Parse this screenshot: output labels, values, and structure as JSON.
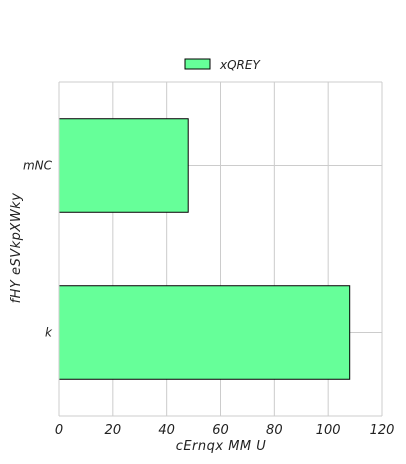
{
  "chart_data": {
    "type": "bar",
    "orientation": "horizontal",
    "categories": [
      "mNC",
      "k"
    ],
    "series": [
      {
        "name": "xQREY",
        "values": [
          48,
          108
        ],
        "color": "#66ff99"
      }
    ],
    "xlabel": "cErnqx MM U",
    "ylabel": "fHY eSVkpXWky",
    "xlim": [
      0,
      120
    ],
    "xticks": [
      0,
      20,
      40,
      60,
      80,
      100,
      120
    ],
    "grid": true,
    "legend_position": "top-center"
  }
}
